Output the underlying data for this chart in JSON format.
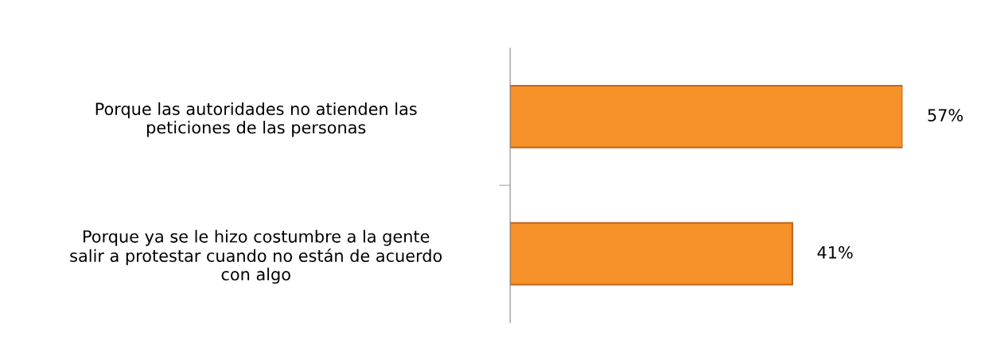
{
  "chart_data": {
    "type": "bar",
    "orientation": "horizontal",
    "categories": [
      "Porque las autoridades no atienden las\npeticiones de las personas",
      "Porque ya se le hizo costumbre a la gente\nsalir a protestar cuando no están de acuerdo\ncon algo"
    ],
    "values": [
      57,
      41
    ],
    "color": "#f7922a",
    "value_labels": [
      "57%",
      "41%"
    ],
    "grid": false,
    "legend": false
  }
}
